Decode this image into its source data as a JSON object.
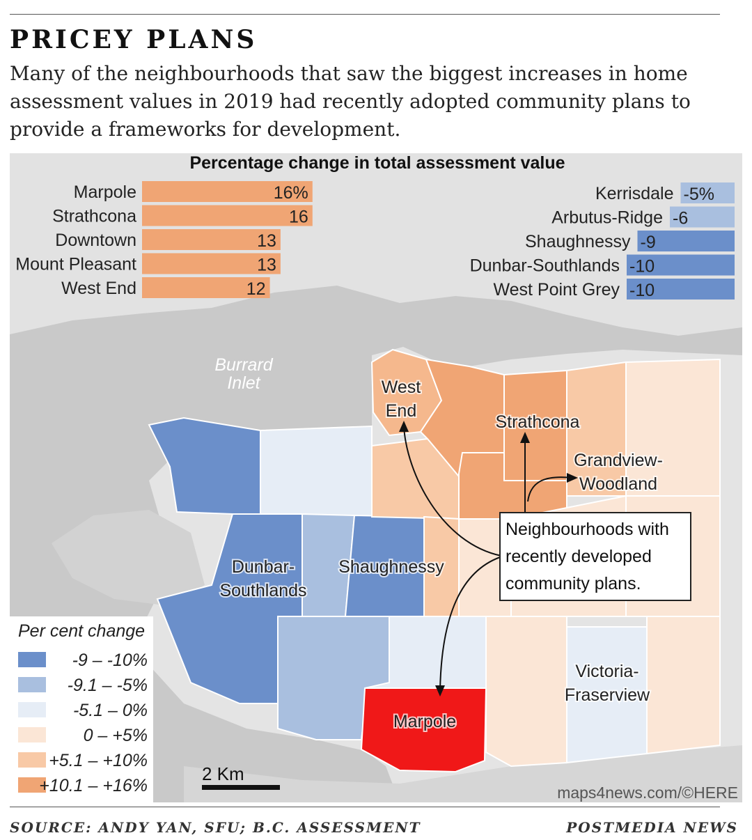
{
  "headline": "PRICEY PLANS",
  "deck": "Many of the neighbourhoods that saw the biggest increases in home assessment values in 2019 had recently adopted community plans to provide a frameworks for development.",
  "chart_data": {
    "type": "bar",
    "title": "Percentage change in total assessment value",
    "increases": {
      "categories": [
        "Marpole",
        "Strathcona",
        "Downtown",
        "Mount Pleasant",
        "West End"
      ],
      "values": [
        16,
        16,
        13,
        13,
        12
      ],
      "labels": [
        "16%",
        "16",
        "13",
        "13",
        "12"
      ],
      "color": "#f0a574"
    },
    "decreases": {
      "categories": [
        "Kerrisdale",
        "Arbutus-Ridge",
        "Shaughnessy",
        "Dunbar-Southlands",
        "West Point Grey"
      ],
      "values": [
        -5,
        -6,
        -9,
        -10,
        -10
      ],
      "labels": [
        "-5%",
        "-6",
        "-9",
        "-10",
        "-10"
      ],
      "colors": [
        "#a9bfdf",
        "#a9bfdf",
        "#6b8fca",
        "#6b8fca",
        "#6b8fca"
      ]
    }
  },
  "map": {
    "water_label": [
      "Burrard",
      "Inlet"
    ],
    "neighbourhood_labels": [
      {
        "id": "west-end",
        "lines": [
          "West",
          "End"
        ]
      },
      {
        "id": "strathcona",
        "lines": [
          "Strathcona"
        ]
      },
      {
        "id": "grandview-woodland",
        "lines": [
          "Grandview-",
          "Woodland"
        ]
      },
      {
        "id": "dunbar-southlands",
        "lines": [
          "Dunbar-",
          "Southlands"
        ]
      },
      {
        "id": "shaughnessy",
        "lines": [
          "Shaughnessy"
        ]
      },
      {
        "id": "victoria-fraserview",
        "lines": [
          "Victoria-",
          "Fraserview"
        ]
      },
      {
        "id": "marpole",
        "lines": [
          "Marpole"
        ]
      }
    ],
    "callout": [
      "Neighbourhoods with",
      "recently developed",
      "community plans."
    ],
    "scale_label": "2 Km",
    "map_credit": "maps4news.com/©HERE",
    "colors": {
      "water": "#c9c9c9",
      "land": "#e4e4e4",
      "marpole": "#f01818"
    }
  },
  "legend": {
    "title": "Per cent change",
    "items": [
      {
        "label": "-9 – -10%",
        "color": "#6b8fca"
      },
      {
        "label": "-9.1 – -5%",
        "color": "#a9bfdf"
      },
      {
        "label": "-5.1 –  0%",
        "color": "#e6edf6"
      },
      {
        "label": "0 – +5%",
        "color": "#fbe6d6"
      },
      {
        "label": "+5.1 – +10%",
        "color": "#f8c9a6"
      },
      {
        "label": "+10.1 – +16%",
        "color": "#f0a574"
      }
    ]
  },
  "footer": {
    "source": "SOURCE: ANDY YAN, SFU; B.C. ASSESSMENT",
    "credit": "POSTMEDIA NEWS"
  }
}
